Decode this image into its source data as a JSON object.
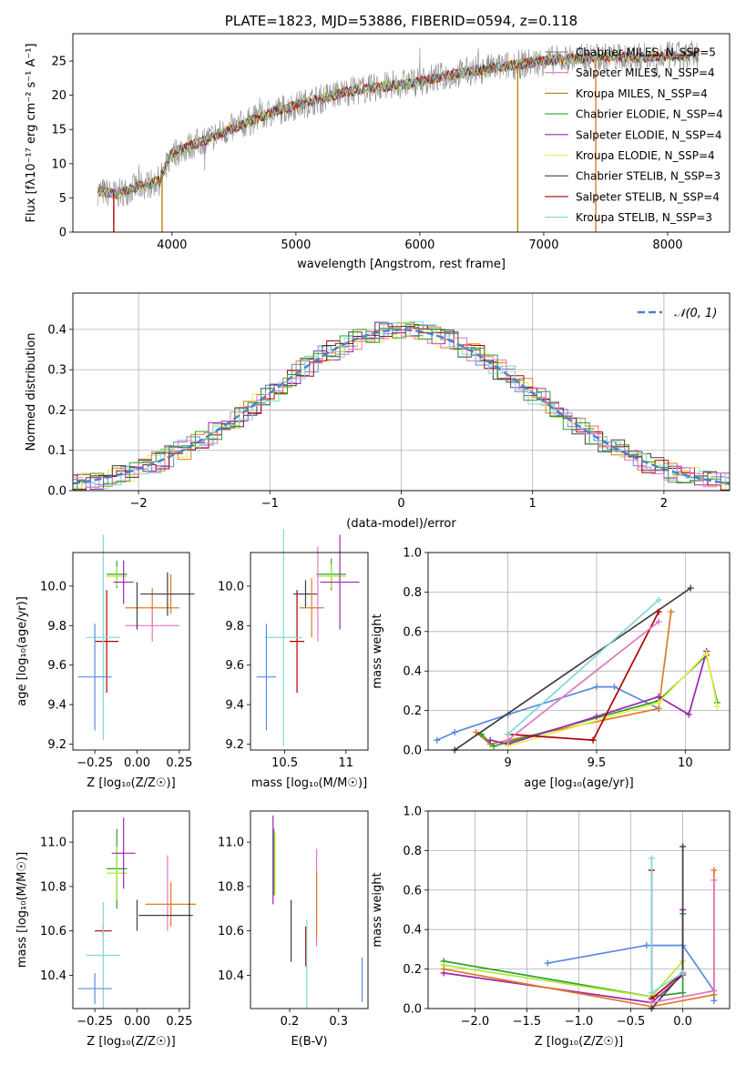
{
  "colors": {
    "chabrier_miles": "#808080",
    "salpeter_miles": "#e377c2",
    "kroupa_miles": "#b8860b",
    "chabrier_elodie": "#2ca02c",
    "salpeter_elodie": "#9c27b0",
    "kroupa_elodie": "#e8f04a",
    "chabrier_stelib": "#404040",
    "salpeter_stelib": "#b00000",
    "kroupa_stelib": "#80d8d8",
    "blue": "#5b8be0",
    "orange": "#e07b25",
    "normal": "#4a7fd0",
    "lime": "#b5e835"
  },
  "chart_data": [
    {
      "type": "line",
      "title": "PLATE=1823, MJD=53886, FIBERID=0594, z=0.118",
      "xlabel": "wavelength [Angstrom, rest frame]",
      "ylabel": "Flux [fλ10⁻¹⁷ erg cm⁻² s⁻¹ A⁻¹]",
      "xlim": [
        3200,
        8500
      ],
      "ylim": [
        0,
        29
      ],
      "xticks": [
        4000,
        5000,
        6000,
        7000,
        8000
      ],
      "yticks": [
        0,
        5,
        10,
        15,
        20,
        25
      ],
      "legend_position": "upper right",
      "series": [
        {
          "name": "Chabrier MILES, N_SSP=5",
          "color_key": "chabrier_miles"
        },
        {
          "name": "Salpeter MILES, N_SSP=4",
          "color_key": "salpeter_miles"
        },
        {
          "name": "Kroupa MILES, N_SSP=4",
          "color_key": "kroupa_miles"
        },
        {
          "name": "Chabrier ELODIE, N_SSP=4",
          "color_key": "chabrier_elodie"
        },
        {
          "name": "Salpeter ELODIE, N_SSP=4",
          "color_key": "salpeter_elodie"
        },
        {
          "name": "Kroupa ELODIE, N_SSP=4",
          "color_key": "kroupa_elodie"
        },
        {
          "name": "Chabrier STELIB, N_SSP=3",
          "color_key": "chabrier_stelib"
        },
        {
          "name": "Salpeter STELIB, N_SSP=4",
          "color_key": "salpeter_stelib"
        },
        {
          "name": "Kroupa STELIB, N_SSP=3",
          "color_key": "kroupa_stelib"
        }
      ],
      "continuum": {
        "x": [
          3400,
          3550,
          3700,
          3900,
          4000,
          4200,
          4400,
          4600,
          4800,
          5000,
          5200,
          5400,
          5600,
          5800,
          6000,
          6200,
          6400,
          6600,
          6800,
          7000,
          7200,
          7400,
          7600,
          7800,
          8000,
          8200
        ],
        "y": [
          6,
          5.5,
          6.5,
          7.5,
          11.5,
          13,
          14.5,
          16,
          17.5,
          18.5,
          19.5,
          20.5,
          21,
          21.5,
          22,
          22.8,
          23.5,
          24,
          24.5,
          25,
          25.3,
          25.5,
          25.5,
          25.6,
          25.7,
          25.8
        ]
      },
      "edge_drops": [
        {
          "x": 3530,
          "color_key": "salpeter_stelib"
        },
        {
          "x": 3920,
          "color_key": "kroupa_miles"
        },
        {
          "x": 6790,
          "color_key": "kroupa_miles"
        },
        {
          "x": 7420,
          "color_key": "orange"
        }
      ]
    },
    {
      "type": "line",
      "xlabel": "(data-model)/error",
      "ylabel": "Normed distribution",
      "xlim": [
        -2.5,
        2.5
      ],
      "ylim": [
        0,
        0.49
      ],
      "xticks": [
        -2,
        -1,
        0,
        1,
        2
      ],
      "yticks": [
        0.0,
        0.1,
        0.2,
        0.3,
        0.4
      ],
      "grid": true,
      "legend_position": "upper right",
      "legend": [
        {
          "name": "𝒩(0, 1)",
          "color_key": "normal",
          "style": "dashed"
        }
      ],
      "histogram_series_color_keys": [
        "blue",
        "orange",
        "salpeter_elodie",
        "kroupa_elodie",
        "chabrier_stelib",
        "salpeter_stelib",
        "kroupa_stelib",
        "salpeter_miles",
        "chabrier_elodie"
      ]
    },
    {
      "type": "scatter",
      "xlabel": "Z [log₁₀(Z/Z☉)]",
      "ylabel": "age  [log₁₀(age/yr)]",
      "xlim": [
        -0.38,
        0.31
      ],
      "ylim": [
        9.17,
        10.17
      ],
      "xticks": [
        -0.25,
        0.0,
        0.25
      ],
      "xticklabels": [
        "−0.25",
        "0.00",
        "0.25"
      ],
      "yticks": [
        9.2,
        9.4,
        9.6,
        9.8,
        10.0
      ],
      "grid": false,
      "points": [
        {
          "x": -0.12,
          "y": 10.06,
          "xerr": 0.06,
          "yerr": 0.07,
          "color_key": "chabrier_elodie"
        },
        {
          "x": -0.12,
          "y": 10.05,
          "xerr": 0.06,
          "yerr": 0.05,
          "color_key": "lime"
        },
        {
          "x": -0.08,
          "y": 10.02,
          "xerr": 0.06,
          "yerr": 0.11,
          "color_key": "salpeter_elodie"
        },
        {
          "x": 0.2,
          "y": 9.96,
          "xerr": 0.08,
          "yerr": 0.1,
          "color_key": "orange"
        },
        {
          "x": 0.09,
          "y": 9.89,
          "xerr": 0.16,
          "yerr": 0.1,
          "color_key": "orange"
        },
        {
          "x": 0.18,
          "y": 9.96,
          "xerr": 0.16,
          "yerr": 0.11,
          "color_key": "chabrier_stelib"
        },
        {
          "x": 0.09,
          "y": 9.8,
          "xerr": 0.16,
          "yerr": 0.08,
          "color_key": "salpeter_miles"
        },
        {
          "x": 0.0,
          "y": 9.9,
          "xerr": 0.0,
          "yerr": 0.12,
          "color_key": "chabrier_stelib"
        },
        {
          "x": -0.18,
          "y": 9.72,
          "xerr": 0.07,
          "yerr": 0.26,
          "color_key": "salpeter_stelib"
        },
        {
          "x": -0.2,
          "y": 9.74,
          "xerr": 0.1,
          "yerr": 0.52,
          "color_key": "kroupa_stelib"
        },
        {
          "x": -0.25,
          "y": 9.54,
          "xerr": 0.1,
          "yerr": 0.27,
          "color_key": "blue"
        }
      ]
    },
    {
      "type": "scatter",
      "xlabel": "mass [log₁₀(M/M☉)]",
      "xlim": [
        10.22,
        11.18
      ],
      "ylim": [
        9.17,
        10.17
      ],
      "xticks": [
        10.5,
        11.0
      ],
      "yticks": [
        9.2,
        9.4,
        9.6,
        9.8,
        10.0
      ],
      "points": [
        {
          "x": 10.88,
          "y": 10.06,
          "xerr": 0.12,
          "yerr": 0.08,
          "color_key": "chabrier_elodie"
        },
        {
          "x": 10.88,
          "y": 10.05,
          "xerr": 0.12,
          "yerr": 0.06,
          "color_key": "lime"
        },
        {
          "x": 10.95,
          "y": 10.02,
          "xerr": 0.16,
          "yerr": 0.24,
          "color_key": "salpeter_elodie"
        },
        {
          "x": 10.67,
          "y": 9.96,
          "xerr": 0.1,
          "yerr": 0.07,
          "color_key": "chabrier_stelib"
        },
        {
          "x": 10.72,
          "y": 9.89,
          "xerr": 0.1,
          "yerr": 0.15,
          "color_key": "orange"
        },
        {
          "x": 10.77,
          "y": 9.96,
          "xerr": 0.0,
          "yerr": 0.24,
          "color_key": "salpeter_miles"
        },
        {
          "x": 10.6,
          "y": 9.72,
          "xerr": 0.06,
          "yerr": 0.26,
          "color_key": "salpeter_stelib"
        },
        {
          "x": 10.49,
          "y": 9.74,
          "xerr": 0.15,
          "yerr": 0.55,
          "color_key": "kroupa_stelib"
        },
        {
          "x": 10.35,
          "y": 9.54,
          "xerr": 0.08,
          "yerr": 0.27,
          "color_key": "blue"
        }
      ]
    },
    {
      "type": "line",
      "xlabel": "age  [log₁₀(age/yr)]",
      "ylabel": "mass weight",
      "xlim": [
        8.55,
        10.25
      ],
      "ylim": [
        0,
        1
      ],
      "xticks": [
        9.0,
        9.5,
        10.0
      ],
      "yticks": [
        0.0,
        0.2,
        0.4,
        0.6,
        0.8,
        1.0
      ],
      "grid": true,
      "series": [
        {
          "color_key": "blue",
          "x": [
            8.6,
            8.7,
            9.0,
            9.5,
            9.6,
            9.85
          ],
          "y": [
            0.05,
            0.09,
            0.18,
            0.32,
            0.32,
            0.21
          ]
        },
        {
          "color_key": "orange",
          "x": [
            8.82,
            8.9,
            9.85,
            9.92
          ],
          "y": [
            0.09,
            0.03,
            0.21,
            0.7
          ]
        },
        {
          "color_key": "chabrier_elodie",
          "x": [
            8.85,
            8.92,
            9.85,
            10.12,
            10.18
          ],
          "y": [
            0.08,
            0.02,
            0.25,
            0.48,
            0.24
          ]
        },
        {
          "color_key": "salpeter_elodie",
          "x": [
            8.9,
            9.0,
            9.5,
            9.85,
            10.02,
            10.12
          ],
          "y": [
            0.05,
            0.03,
            0.17,
            0.27,
            0.18,
            0.5
          ]
        },
        {
          "color_key": "kroupa_elodie",
          "x": [
            9.0,
            9.85,
            10.12,
            10.18
          ],
          "y": [
            0.02,
            0.24,
            0.49,
            0.22
          ]
        },
        {
          "color_key": "chabrier_stelib",
          "x": [
            8.7,
            10.03
          ],
          "y": [
            0.0,
            0.82
          ]
        },
        {
          "color_key": "salpeter_stelib",
          "x": [
            9.0,
            9.48,
            9.85
          ],
          "y": [
            0.08,
            0.05,
            0.7
          ]
        },
        {
          "color_key": "kroupa_stelib",
          "x": [
            9.0,
            9.85
          ],
          "y": [
            0.08,
            0.76
          ]
        },
        {
          "color_key": "salpeter_miles",
          "x": [
            9.0,
            9.85
          ],
          "y": [
            0.05,
            0.65
          ]
        }
      ]
    },
    {
      "type": "scatter",
      "xlabel": "Z [log₁₀(Z/Z☉)]",
      "ylabel": "mass [log₁₀(M/M☉)]",
      "xlim": [
        -0.38,
        0.31
      ],
      "ylim": [
        10.25,
        11.14
      ],
      "xticks": [
        -0.25,
        0.0,
        0.25
      ],
      "xticklabels": [
        "−0.25",
        "0.00",
        "0.25"
      ],
      "yticks": [
        10.4,
        10.6,
        10.8,
        11.0
      ],
      "points": [
        {
          "x": -0.12,
          "y": 10.88,
          "xerr": 0.06,
          "yerr": 0.18,
          "color_key": "chabrier_elodie"
        },
        {
          "x": -0.12,
          "y": 10.86,
          "xerr": 0.06,
          "yerr": 0.12,
          "color_key": "lime"
        },
        {
          "x": -0.08,
          "y": 10.95,
          "xerr": 0.07,
          "yerr": 0.16,
          "color_key": "salpeter_elodie"
        },
        {
          "x": 0.2,
          "y": 10.72,
          "xerr": 0.15,
          "yerr": 0.1,
          "color_key": "orange"
        },
        {
          "x": 0.18,
          "y": 10.77,
          "xerr": 0.0,
          "yerr": 0.17,
          "color_key": "salpeter_miles"
        },
        {
          "x": 0.17,
          "y": 10.67,
          "xerr": 0.16,
          "yerr": 0.0,
          "color_key": "chabrier_stelib"
        },
        {
          "x": 0.0,
          "y": 10.67,
          "xerr": 0.0,
          "yerr": 0.07,
          "color_key": "chabrier_stelib"
        },
        {
          "x": -0.2,
          "y": 10.6,
          "xerr": 0.05,
          "yerr": 0.03,
          "color_key": "salpeter_stelib"
        },
        {
          "x": -0.2,
          "y": 10.49,
          "xerr": 0.1,
          "yerr": 0.24,
          "color_key": "kroupa_stelib"
        },
        {
          "x": -0.25,
          "y": 10.34,
          "xerr": 0.1,
          "yerr": 0.07,
          "color_key": "blue"
        }
      ]
    },
    {
      "type": "scatter",
      "xlabel": "E(B-V)",
      "xlim": [
        0.12,
        0.36
      ],
      "ylim": [
        10.25,
        11.14
      ],
      "xticks": [
        0.2,
        0.3
      ],
      "yticks": [
        10.4,
        10.6,
        10.8,
        11.0
      ],
      "points": [
        {
          "x": 0.168,
          "y": 10.91,
          "yerr": 0.15,
          "color_key": "chabrier_elodie"
        },
        {
          "x": 0.166,
          "y": 10.92,
          "yerr": 0.2,
          "color_key": "salpeter_elodie"
        },
        {
          "x": 0.17,
          "y": 10.9,
          "yerr": 0.14,
          "color_key": "lime"
        },
        {
          "x": 0.255,
          "y": 10.75,
          "yerr": 0.22,
          "color_key": "salpeter_miles"
        },
        {
          "x": 0.255,
          "y": 10.72,
          "yerr": 0.15,
          "color_key": "orange"
        },
        {
          "x": 0.203,
          "y": 10.6,
          "yerr": 0.14,
          "color_key": "chabrier_stelib"
        },
        {
          "x": 0.233,
          "y": 10.53,
          "yerr": 0.09,
          "color_key": "salpeter_stelib"
        },
        {
          "x": 0.235,
          "y": 10.45,
          "yerr": 0.2,
          "color_key": "kroupa_stelib"
        },
        {
          "x": 0.348,
          "y": 10.38,
          "yerr": 0.1,
          "color_key": "blue"
        }
      ]
    },
    {
      "type": "line",
      "xlabel": "Z [log₁₀(Z/Z☉)]",
      "ylabel": "mass weight",
      "xlim": [
        -2.45,
        0.45
      ],
      "ylim": [
        0,
        1
      ],
      "xticks": [
        -2.0,
        -1.5,
        -1.0,
        -0.5,
        0.0
      ],
      "xticklabels": [
        "−2.0",
        "−1.5",
        "−1.0",
        "−0.5",
        "0.0"
      ],
      "yticks": [
        0.0,
        0.2,
        0.4,
        0.6,
        0.8,
        1.0
      ],
      "grid": true,
      "series": [
        {
          "color_key": "blue",
          "x": [
            -1.3,
            -0.35,
            0.0,
            0.3,
            0.3
          ],
          "y": [
            0.23,
            0.32,
            0.32,
            0.09,
            0.04
          ]
        },
        {
          "color_key": "chabrier_elodie",
          "x": [
            -2.3,
            -0.3,
            0.0,
            0.0
          ],
          "y": [
            0.24,
            0.06,
            0.08,
            0.48
          ]
        },
        {
          "color_key": "lime",
          "x": [
            -2.3,
            -0.3,
            0.0
          ],
          "y": [
            0.22,
            0.06,
            0.24
          ]
        },
        {
          "color_key": "salpeter_elodie",
          "x": [
            -2.3,
            -0.3,
            0.0,
            0.0
          ],
          "y": [
            0.18,
            0.03,
            0.17,
            0.5
          ]
        },
        {
          "color_key": "orange",
          "x": [
            -2.3,
            -0.3,
            0.3,
            0.3
          ],
          "y": [
            0.2,
            0.01,
            0.07,
            0.7
          ]
        },
        {
          "color_key": "chabrier_stelib",
          "x": [
            -0.3,
            0.0,
            0.0
          ],
          "y": [
            0.0,
            0.18,
            0.82
          ]
        },
        {
          "color_key": "salpeter_stelib",
          "x": [
            -0.3,
            -0.3,
            0.0
          ],
          "y": [
            0.7,
            0.05,
            0.18
          ]
        },
        {
          "color_key": "kroupa_stelib",
          "x": [
            -0.3,
            -0.3,
            0.0
          ],
          "y": [
            0.76,
            0.08,
            0.18
          ]
        },
        {
          "color_key": "salpeter_miles",
          "x": [
            -0.3,
            0.3,
            0.3
          ],
          "y": [
            0.03,
            0.09,
            0.65
          ]
        }
      ]
    }
  ]
}
